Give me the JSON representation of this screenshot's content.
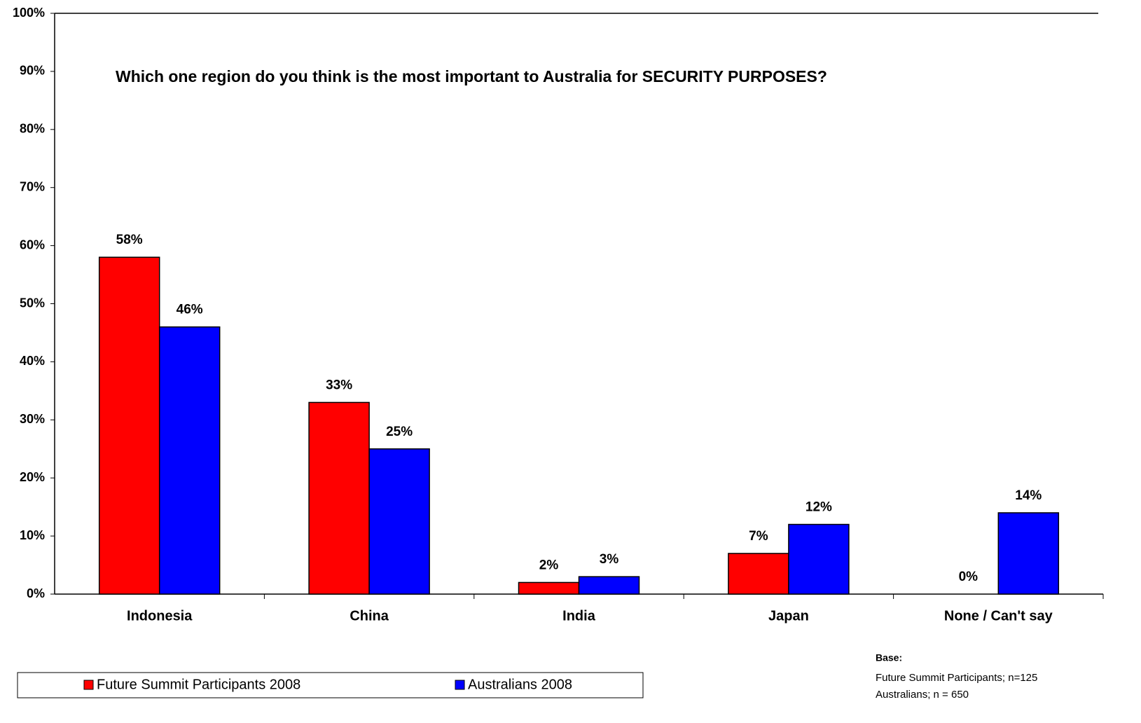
{
  "chart_data": {
    "type": "bar",
    "title": "Which one region do you think is the most important to Australia for SECURITY PURPOSES?",
    "categories": [
      "Indonesia",
      "China",
      "India",
      "Japan",
      "None / Can't say"
    ],
    "series": [
      {
        "name": "Future Summit Participants 2008",
        "color": "#ff0000",
        "values": [
          58,
          33,
          2,
          7,
          0
        ],
        "value_labels": [
          "58%",
          "33%",
          "2%",
          "7%",
          "0%"
        ]
      },
      {
        "name": "Australians 2008",
        "color": "#0000ff",
        "values": [
          46,
          25,
          3,
          12,
          14
        ],
        "value_labels": [
          "46%",
          "25%",
          "3%",
          "12%",
          "14%"
        ]
      }
    ],
    "ylim": [
      0,
      100
    ],
    "yticks": [
      {
        "value": 0,
        "label": "0%"
      },
      {
        "value": 10,
        "label": "10%"
      },
      {
        "value": 20,
        "label": "20%"
      },
      {
        "value": 30,
        "label": "30%"
      },
      {
        "value": 40,
        "label": "40%"
      },
      {
        "value": 50,
        "label": "50%"
      },
      {
        "value": 60,
        "label": "60%"
      },
      {
        "value": 70,
        "label": "70%"
      },
      {
        "value": 80,
        "label": "80%"
      },
      {
        "value": 90,
        "label": "90%"
      },
      {
        "value": 100,
        "label": "100%"
      }
    ],
    "grid": false,
    "legend": "bottom-left",
    "base_note": {
      "title": "Base:",
      "lines": [
        "Future Summit Participants; n=125",
        "Australians; n = 650"
      ]
    }
  }
}
